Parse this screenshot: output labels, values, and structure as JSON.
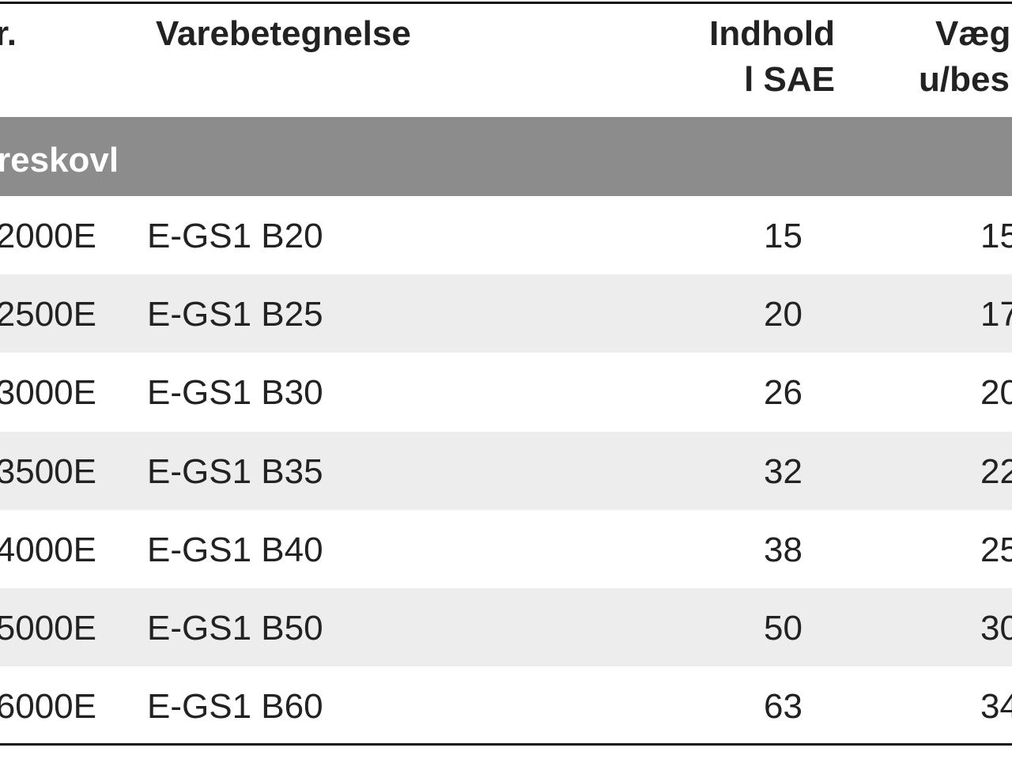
{
  "header": [
    [
      "r."
    ],
    [
      "Varebetegnelse"
    ],
    [
      "Indhold",
      "l SAE"
    ],
    [
      "Væg",
      "u/bes"
    ]
  ],
  "section": "reskovl",
  "rows": [
    [
      "2000E",
      "E-GS1 B20",
      "15",
      "15"
    ],
    [
      "2500E",
      "E-GS1 B25",
      "20",
      "17"
    ],
    [
      "3000E",
      "E-GS1 B30",
      "26",
      "20"
    ],
    [
      "3500E",
      "E-GS1 B35",
      "32",
      "22"
    ],
    [
      "4000E",
      "E-GS1 B40",
      "38",
      "25"
    ],
    [
      "5000E",
      "E-GS1 B50",
      "50",
      "30"
    ],
    [
      "6000E",
      "E-GS1 B60",
      "63",
      "34"
    ]
  ]
}
